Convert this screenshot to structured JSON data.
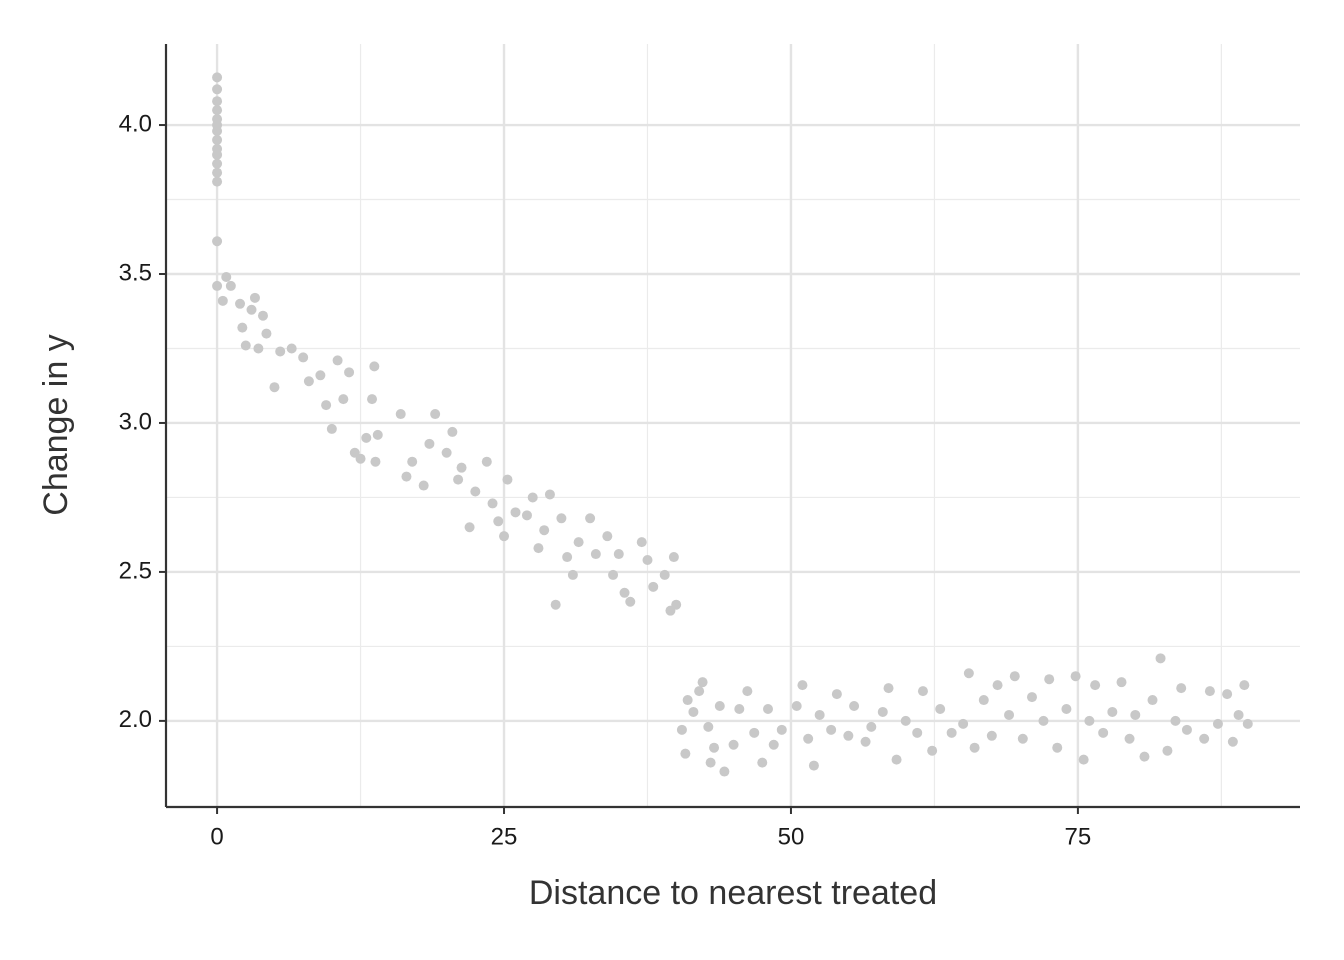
{
  "chart_data": {
    "type": "scatter",
    "x_label": "Distance to nearest treated",
    "y_label": "Change in y",
    "color": "#c8c8c8",
    "grid": true,
    "xlim": [
      -4.45,
      94.35
    ],
    "ylim": [
      1.711,
      4.272
    ],
    "xticks": [
      0,
      25,
      50,
      75
    ],
    "yticks": [
      {
        "value": 2,
        "label": "2.0"
      },
      {
        "value": 2.5,
        "label": "2.5"
      },
      {
        "value": 3,
        "label": "3.0"
      },
      {
        "value": 3.5,
        "label": "3.5"
      },
      {
        "value": 4,
        "label": "4.0"
      }
    ],
    "xminor": [
      12.5,
      37.5,
      62.5,
      87.5
    ],
    "yminor": [
      2.25,
      2.75,
      3.25,
      3.75
    ],
    "x": [
      0,
      0,
      0,
      0,
      0,
      0,
      0,
      0,
      0,
      0,
      0,
      0,
      0,
      0,
      0,
      0.5,
      0.8,
      1.2,
      2,
      2.2,
      2.5,
      3,
      3.3,
      3.6,
      4,
      4.3,
      5,
      5.5,
      6.5,
      7.5,
      8,
      9,
      9.5,
      10,
      10.5,
      11,
      11.5,
      12,
      12.5,
      13,
      13.5,
      13.7,
      14,
      13.8,
      16,
      16.5,
      17,
      18,
      18.5,
      19,
      20,
      20.5,
      21,
      21.3,
      22,
      22.5,
      23.5,
      24,
      24.5,
      25,
      25.3,
      26,
      27,
      27.5,
      28,
      28.5,
      29,
      29.5,
      30,
      30.5,
      31,
      31.5,
      32.5,
      33,
      34,
      34.5,
      35,
      35.5,
      36,
      37,
      37.5,
      38,
      39,
      39.5,
      39.8,
      40,
      40.5,
      40.8,
      41,
      41.5,
      42,
      42.3,
      42.8,
      43,
      43.3,
      43.8,
      44.2,
      45,
      45.5,
      46.2,
      46.8,
      47.5,
      48,
      48.5,
      49.2,
      50.5,
      51,
      51.5,
      52,
      52.5,
      53.5,
      54,
      55,
      55.5,
      56.5,
      57,
      58,
      58.5,
      59.2,
      60,
      61,
      61.5,
      62.3,
      63,
      64,
      65,
      65.5,
      66,
      66.8,
      67.5,
      68,
      69,
      69.5,
      70.2,
      71,
      72,
      72.5,
      73.2,
      74,
      74.8,
      75.5,
      76,
      76.5,
      77.2,
      78,
      78.8,
      79.5,
      80,
      80.8,
      81.5,
      82.2,
      82.8,
      83.5,
      84,
      84.5,
      86,
      86.5,
      87.2,
      88,
      88.5,
      89,
      89.5,
      89.8
    ],
    "values": [
      4.16,
      4.12,
      4.08,
      4.05,
      4.02,
      4.0,
      3.98,
      3.95,
      3.92,
      3.9,
      3.87,
      3.84,
      3.81,
      3.61,
      3.46,
      3.41,
      3.49,
      3.46,
      3.4,
      3.32,
      3.26,
      3.38,
      3.42,
      3.25,
      3.36,
      3.3,
      3.12,
      3.24,
      3.25,
      3.22,
      3.14,
      3.16,
      3.06,
      2.98,
      3.21,
      3.08,
      3.17,
      2.9,
      2.88,
      2.95,
      3.08,
      3.19,
      2.96,
      2.87,
      3.03,
      2.82,
      2.87,
      2.79,
      2.93,
      3.03,
      2.9,
      2.97,
      2.81,
      2.85,
      2.65,
      2.77,
      2.87,
      2.73,
      2.67,
      2.62,
      2.81,
      2.7,
      2.69,
      2.75,
      2.58,
      2.64,
      2.76,
      2.39,
      2.68,
      2.55,
      2.49,
      2.6,
      2.68,
      2.56,
      2.62,
      2.49,
      2.56,
      2.43,
      2.4,
      2.6,
      2.54,
      2.45,
      2.49,
      2.37,
      2.55,
      2.39,
      1.97,
      1.89,
      2.07,
      2.03,
      2.1,
      2.13,
      1.98,
      1.86,
      1.91,
      2.05,
      1.83,
      1.92,
      2.04,
      2.1,
      1.96,
      1.86,
      2.04,
      1.92,
      1.97,
      2.05,
      2.12,
      1.94,
      1.85,
      2.02,
      1.97,
      2.09,
      1.95,
      2.05,
      1.93,
      1.98,
      2.03,
      2.11,
      1.87,
      2.0,
      1.96,
      2.1,
      1.9,
      2.04,
      1.96,
      1.99,
      2.16,
      1.91,
      2.07,
      1.95,
      2.12,
      2.02,
      2.15,
      1.94,
      2.08,
      2.0,
      2.14,
      1.91,
      2.04,
      2.15,
      1.87,
      2.0,
      2.12,
      1.96,
      2.03,
      2.13,
      1.94,
      2.02,
      1.88,
      2.07,
      2.21,
      1.9,
      2.0,
      2.11,
      1.97,
      1.94,
      2.1,
      1.99,
      2.09,
      1.93,
      2.02,
      2.12,
      1.99
    ]
  }
}
